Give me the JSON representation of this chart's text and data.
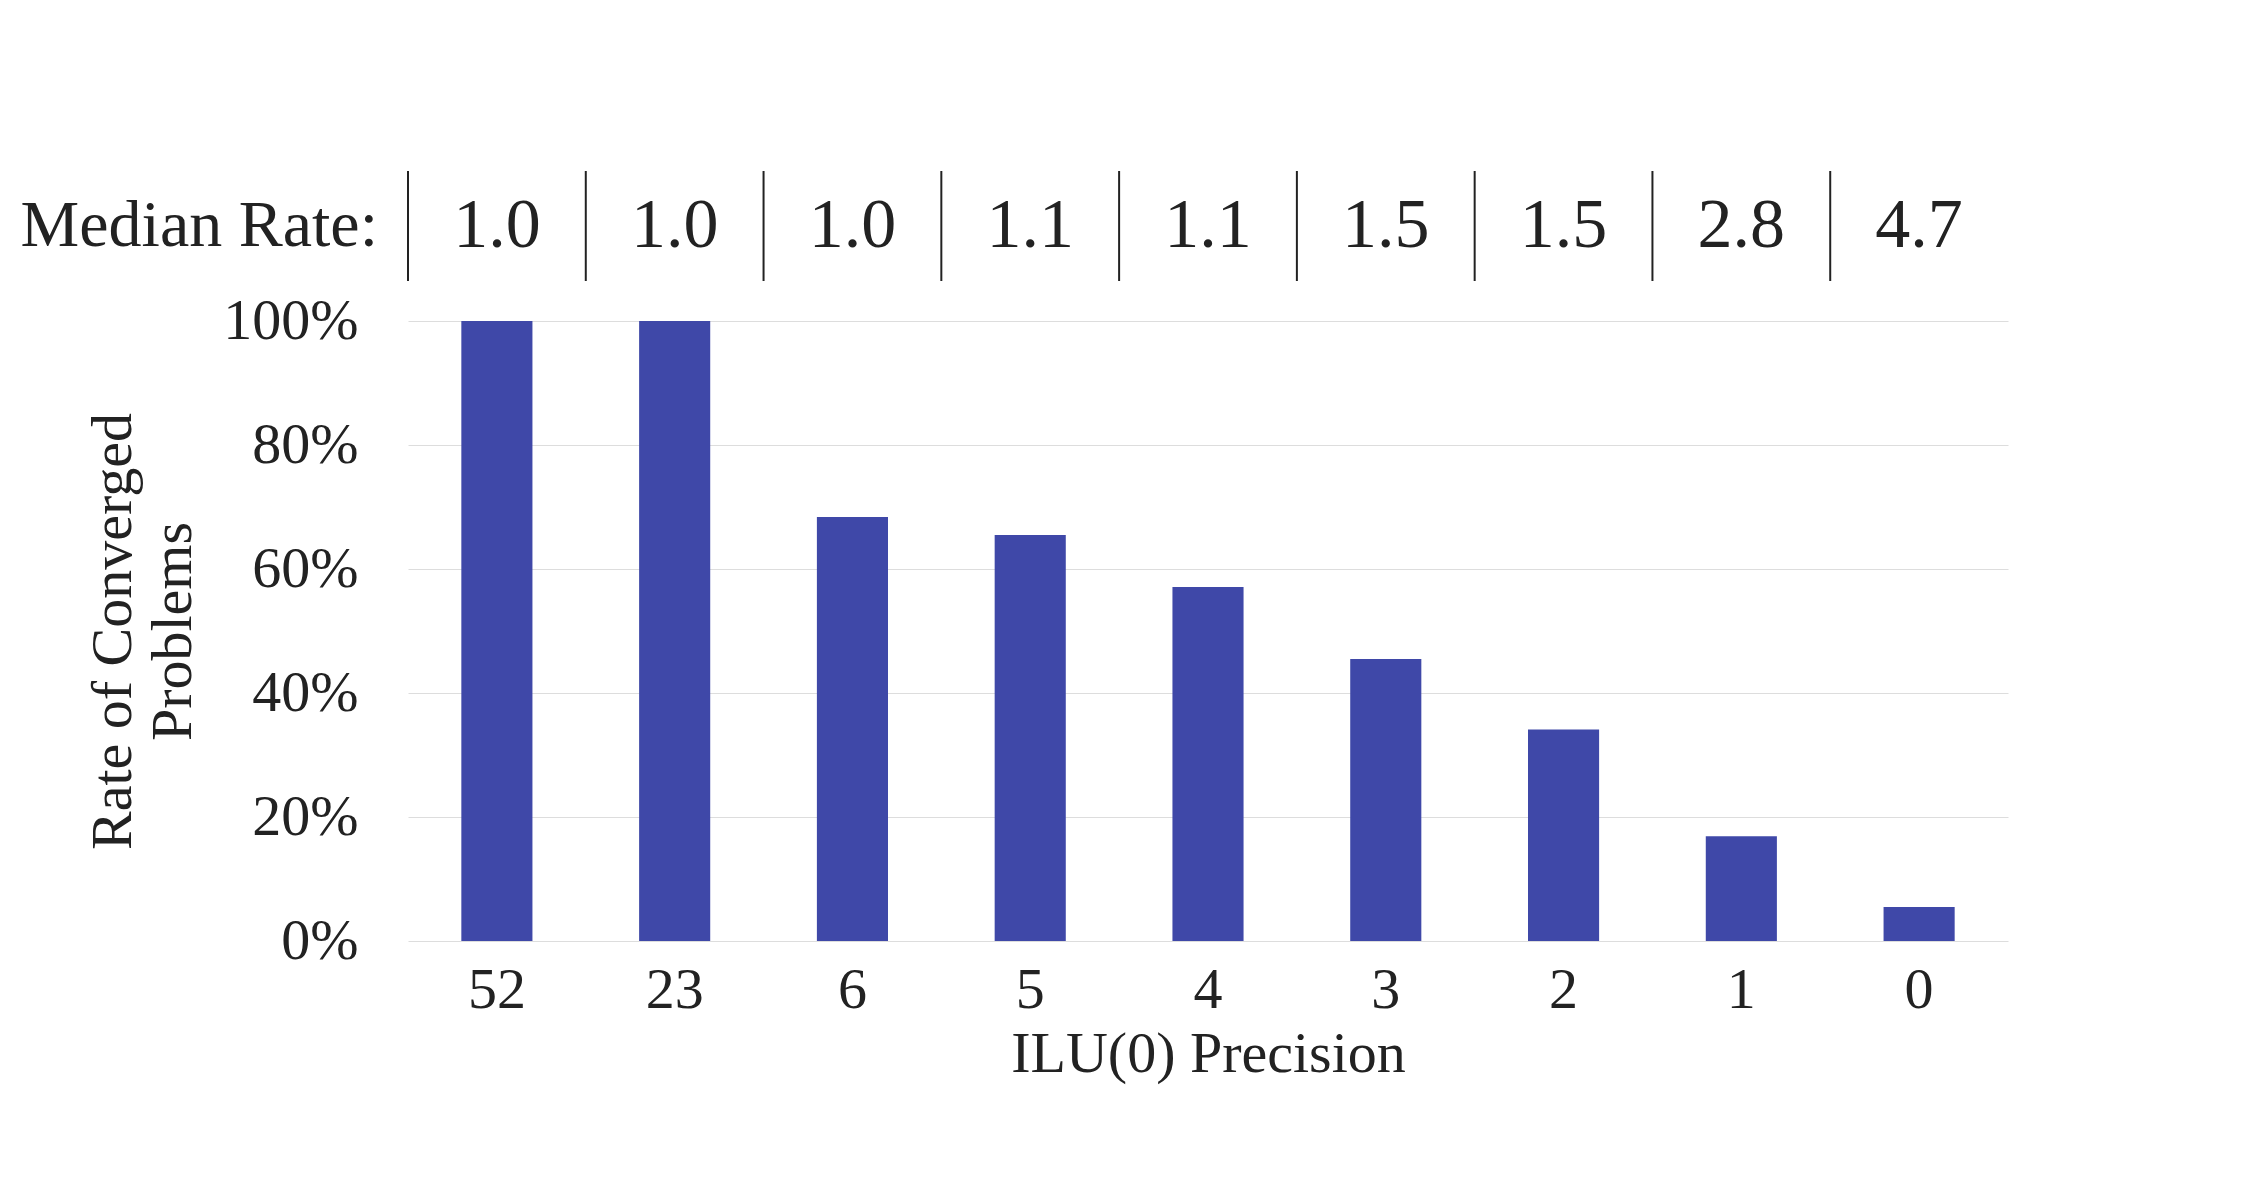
{
  "chart_data": {
    "type": "bar",
    "xlabel": "ILU(0) Precision",
    "ylabel": "Rate of Converged Problems",
    "categories": [
      "52",
      "23",
      "6",
      "5",
      "4",
      "3",
      "2",
      "1",
      "0"
    ],
    "values": [
      100,
      100,
      68.4,
      65.5,
      57.1,
      45.5,
      34.1,
      16.9,
      5.5
    ],
    "color": "#3f48a8",
    "ylim": [
      0,
      100
    ],
    "yticks": [
      {
        "value": 0,
        "label": "0%"
      },
      {
        "value": 20,
        "label": "20%"
      },
      {
        "value": 40,
        "label": "40%"
      },
      {
        "value": 60,
        "label": "60%"
      },
      {
        "value": 80,
        "label": "80%"
      },
      {
        "value": 100,
        "label": "100%"
      }
    ],
    "grid": "y",
    "annotations": [
      "Median Rate:",
      "1.0",
      "1.0",
      "1.0",
      "1.1",
      "1.1",
      "1.5",
      "1.5",
      "2.8",
      "4.7"
    ]
  }
}
